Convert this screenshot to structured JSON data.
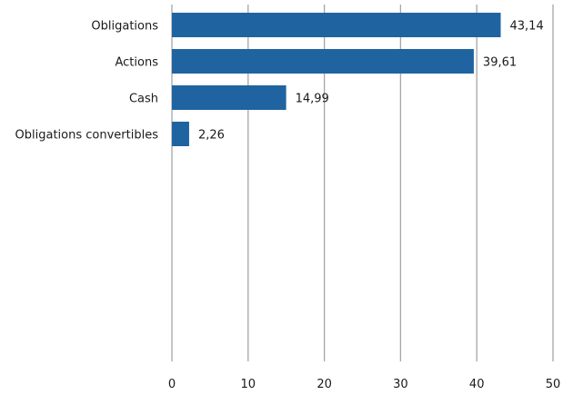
{
  "chart_data": {
    "type": "bar",
    "orientation": "horizontal",
    "categories": [
      "Obligations",
      "Actions",
      "Cash",
      "Obligations convertibles"
    ],
    "values": [
      43.14,
      39.61,
      14.99,
      2.26
    ],
    "value_labels": [
      "43,14",
      "39,61",
      "14,99",
      "2,26"
    ],
    "xlim": [
      0,
      50
    ],
    "xticks": [
      0,
      10,
      20,
      30,
      40,
      50
    ],
    "xtick_labels": [
      "0",
      "10",
      "20",
      "30",
      "40",
      "50"
    ],
    "grid": "vertical",
    "bar_color": "#1f64a1",
    "title": "",
    "xlabel": "",
    "ylabel": ""
  }
}
